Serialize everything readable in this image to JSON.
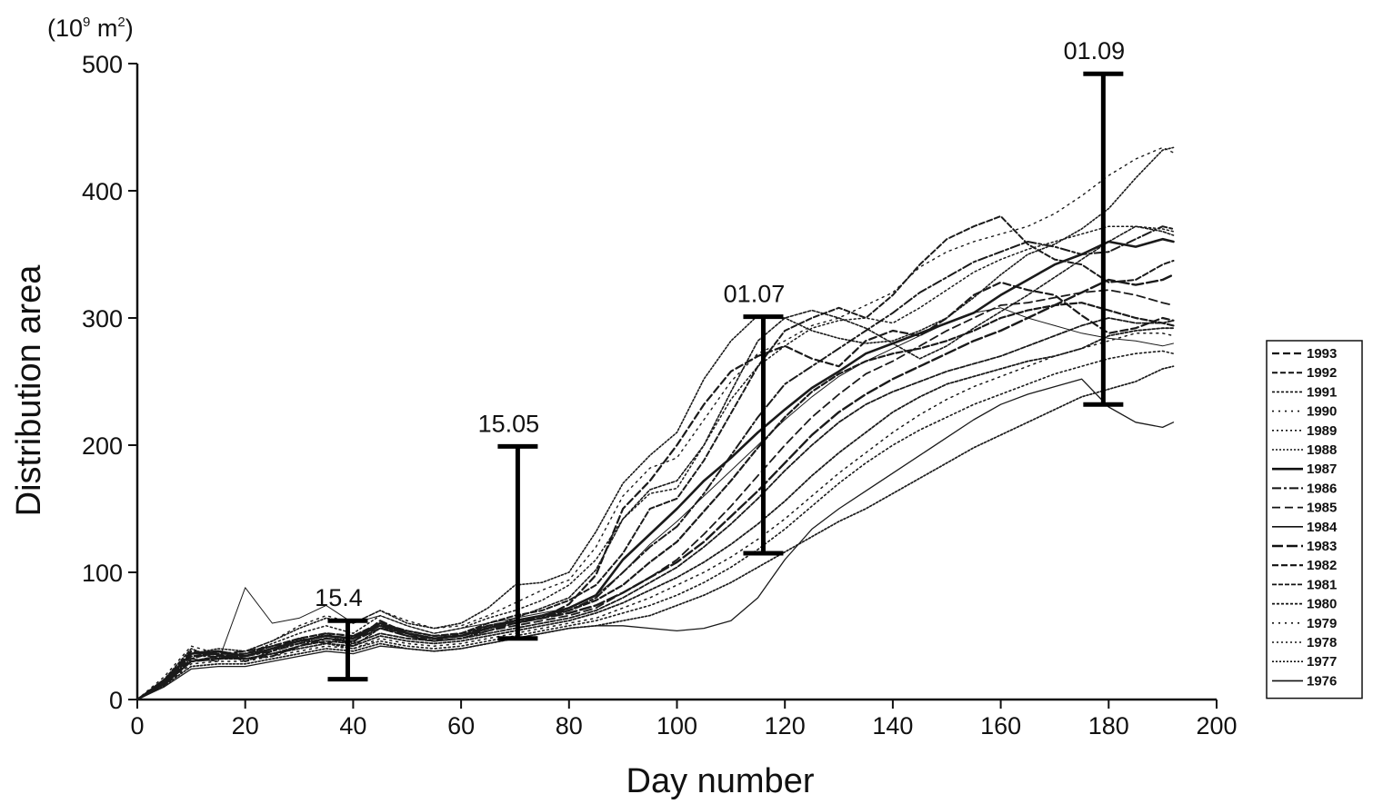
{
  "chart_data": {
    "type": "line",
    "title": "",
    "xlabel": "Day number",
    "ylabel": "Distribution area",
    "y_unit": {
      "base": "(10",
      "exp": "9",
      "mid": " m",
      "exp2": "2",
      "end": ")"
    },
    "xlim": [
      0,
      200
    ],
    "ylim": [
      0,
      500
    ],
    "x_ticks": [
      "0",
      "20",
      "40",
      "60",
      "80",
      "100",
      "120",
      "140",
      "160",
      "180",
      "200"
    ],
    "y_ticks": [
      "0",
      "100",
      "200",
      "300",
      "400",
      "500"
    ],
    "grid": false,
    "legend_position": "right",
    "x_days": [
      0,
      5,
      10,
      15,
      20,
      25,
      30,
      35,
      40,
      45,
      50,
      55,
      60,
      65,
      70,
      75,
      80,
      85,
      90,
      95,
      100,
      105,
      110,
      115,
      120,
      125,
      130,
      135,
      140,
      145,
      150,
      155,
      160,
      165,
      170,
      175,
      180,
      185,
      190,
      192
    ],
    "series": [
      {
        "name": "1993",
        "dash": "8,4",
        "width": 2.2,
        "values": [
          0,
          15,
          38,
          35,
          32,
          34,
          42,
          48,
          45,
          62,
          52,
          48,
          50,
          58,
          62,
          64,
          75,
          98,
          150,
          172,
          200,
          232,
          258,
          270,
          278,
          268,
          262,
          282,
          290,
          286,
          300,
          318,
          328,
          322,
          318,
          302,
          288,
          292,
          300,
          298
        ]
      },
      {
        "name": "1992",
        "dash": "6,3",
        "width": 2.0,
        "values": [
          0,
          12,
          32,
          38,
          30,
          38,
          48,
          44,
          50,
          58,
          50,
          46,
          52,
          60,
          66,
          70,
          78,
          90,
          115,
          150,
          158,
          188,
          225,
          262,
          290,
          300,
          308,
          300,
          318,
          342,
          362,
          372,
          380,
          358,
          346,
          342,
          328,
          330,
          342,
          345
        ]
      },
      {
        "name": "1991",
        "dash": "3,2",
        "width": 1.6,
        "values": [
          0,
          16,
          40,
          32,
          36,
          40,
          44,
          52,
          42,
          56,
          54,
          50,
          50,
          56,
          64,
          72,
          80,
          102,
          142,
          165,
          172,
          200,
          242,
          282,
          300,
          306,
          300,
          292,
          280,
          268,
          278,
          292,
          305,
          318,
          332,
          346,
          360,
          372,
          368,
          365
        ]
      },
      {
        "name": "1990",
        "dash": "2,5",
        "width": 1.4,
        "values": [
          0,
          18,
          42,
          36,
          38,
          46,
          58,
          66,
          60,
          70,
          62,
          56,
          58,
          66,
          76,
          86,
          94,
          120,
          160,
          182,
          190,
          220,
          250,
          272,
          282,
          294,
          300,
          310,
          320,
          340,
          352,
          360,
          366,
          372,
          382,
          396,
          412,
          425,
          434,
          430
        ]
      },
      {
        "name": "1989",
        "dash": "2,3",
        "width": 1.5,
        "values": [
          0,
          14,
          34,
          34,
          36,
          44,
          52,
          58,
          52,
          66,
          58,
          52,
          56,
          64,
          70,
          78,
          90,
          110,
          142,
          162,
          166,
          200,
          236,
          262,
          278,
          292,
          298,
          300,
          296,
          308,
          322,
          336,
          346,
          354,
          360,
          366,
          372,
          372,
          370,
          368
        ]
      },
      {
        "name": "1988",
        "dash": "2,2",
        "width": 1.6,
        "values": [
          0,
          16,
          36,
          40,
          38,
          46,
          56,
          64,
          60,
          70,
          60,
          56,
          60,
          72,
          90,
          92,
          100,
          132,
          170,
          192,
          210,
          252,
          282,
          302,
          300,
          290,
          284,
          280,
          282,
          290,
          300,
          316,
          334,
          350,
          358,
          370,
          386,
          410,
          432,
          434
        ]
      },
      {
        "name": "1987",
        "dash": "",
        "width": 2.6,
        "values": [
          0,
          14,
          36,
          38,
          34,
          40,
          46,
          50,
          48,
          60,
          52,
          48,
          50,
          56,
          62,
          66,
          72,
          82,
          110,
          130,
          150,
          172,
          190,
          210,
          228,
          245,
          258,
          272,
          280,
          288,
          296,
          304,
          318,
          330,
          342,
          350,
          360,
          356,
          362,
          360
        ]
      },
      {
        "name": "1986",
        "dash": "10,3,3,3",
        "width": 2.0,
        "values": [
          0,
          12,
          30,
          34,
          34,
          38,
          44,
          48,
          46,
          56,
          50,
          46,
          48,
          54,
          60,
          64,
          70,
          80,
          100,
          120,
          136,
          162,
          192,
          222,
          248,
          262,
          276,
          290,
          304,
          320,
          332,
          344,
          352,
          360,
          356,
          350,
          352,
          362,
          372,
          370
        ]
      },
      {
        "name": "1985",
        "dash": "9,5",
        "width": 1.8,
        "values": [
          0,
          15,
          36,
          36,
          38,
          42,
          46,
          50,
          48,
          56,
          50,
          48,
          50,
          54,
          58,
          62,
          66,
          72,
          84,
          96,
          110,
          130,
          152,
          176,
          200,
          222,
          240,
          256,
          266,
          278,
          290,
          300,
          310,
          312,
          316,
          320,
          322,
          318,
          312,
          310
        ]
      },
      {
        "name": "1984",
        "dash": "",
        "width": 1.0,
        "values": [
          0,
          14,
          32,
          30,
          88,
          60,
          64,
          74,
          60,
          66,
          58,
          52,
          56,
          60,
          64,
          68,
          72,
          82,
          100,
          122,
          140,
          160,
          180,
          200,
          220,
          238,
          254,
          266,
          276,
          286,
          296,
          304,
          308,
          300,
          294,
          288,
          284,
          282,
          278,
          280
        ]
      },
      {
        "name": "1983",
        "dash": "12,4",
        "width": 2.4,
        "values": [
          0,
          13,
          30,
          32,
          34,
          40,
          46,
          50,
          48,
          58,
          52,
          48,
          50,
          56,
          60,
          64,
          68,
          74,
          84,
          96,
          108,
          124,
          144,
          164,
          186,
          208,
          226,
          240,
          252,
          262,
          272,
          282,
          290,
          300,
          310,
          320,
          330,
          326,
          330,
          334
        ]
      },
      {
        "name": "1982",
        "dash": "7,3",
        "width": 2.2,
        "values": [
          0,
          13,
          34,
          36,
          36,
          42,
          48,
          52,
          50,
          60,
          54,
          50,
          52,
          58,
          62,
          66,
          70,
          78,
          90,
          108,
          124,
          148,
          172,
          198,
          222,
          242,
          256,
          266,
          272,
          276,
          282,
          290,
          300,
          306,
          310,
          312,
          306,
          300,
          296,
          294
        ]
      },
      {
        "name": "1981",
        "dash": "5,2",
        "width": 1.8,
        "values": [
          0,
          12,
          30,
          34,
          32,
          36,
          42,
          46,
          44,
          52,
          48,
          46,
          48,
          52,
          56,
          60,
          64,
          70,
          80,
          92,
          104,
          120,
          138,
          158,
          180,
          200,
          218,
          232,
          242,
          250,
          258,
          264,
          270,
          278,
          286,
          294,
          300,
          296,
          296,
          298
        ]
      },
      {
        "name": "1980",
        "dash": "3,2",
        "width": 1.8,
        "values": [
          0,
          12,
          30,
          32,
          32,
          36,
          40,
          44,
          42,
          50,
          46,
          44,
          46,
          50,
          54,
          58,
          62,
          68,
          76,
          86,
          96,
          108,
          122,
          138,
          156,
          176,
          194,
          210,
          226,
          238,
          248,
          254,
          260,
          266,
          270,
          276,
          286,
          290,
          292,
          292
        ]
      },
      {
        "name": "1979",
        "dash": "2,5",
        "width": 1.5,
        "values": [
          0,
          11,
          28,
          30,
          30,
          34,
          38,
          42,
          40,
          48,
          44,
          42,
          44,
          48,
          52,
          56,
          60,
          64,
          72,
          80,
          90,
          100,
          112,
          126,
          142,
          160,
          178,
          194,
          210,
          224,
          236,
          246,
          254,
          262,
          270,
          276,
          282,
          288,
          288,
          286
        ]
      },
      {
        "name": "1978",
        "dash": "2,3",
        "width": 1.6,
        "values": [
          0,
          12,
          30,
          32,
          32,
          36,
          40,
          44,
          40,
          46,
          42,
          40,
          42,
          46,
          50,
          54,
          58,
          62,
          68,
          74,
          82,
          92,
          104,
          118,
          134,
          152,
          170,
          186,
          200,
          212,
          222,
          232,
          240,
          248,
          256,
          262,
          268,
          272,
          274,
          272
        ]
      },
      {
        "name": "1977",
        "dash": "2,2",
        "width": 1.7,
        "values": [
          0,
          11,
          26,
          28,
          28,
          32,
          36,
          40,
          38,
          44,
          40,
          38,
          40,
          44,
          48,
          52,
          56,
          58,
          62,
          66,
          74,
          82,
          92,
          104,
          116,
          128,
          140,
          150,
          162,
          174,
          186,
          198,
          208,
          218,
          228,
          238,
          244,
          250,
          260,
          262
        ]
      },
      {
        "name": "1976",
        "dash": "",
        "width": 1.3,
        "values": [
          0,
          10,
          24,
          26,
          26,
          30,
          34,
          38,
          36,
          42,
          40,
          38,
          40,
          44,
          48,
          52,
          56,
          58,
          58,
          56,
          54,
          56,
          62,
          80,
          110,
          134,
          150,
          164,
          178,
          192,
          206,
          220,
          232,
          240,
          246,
          252,
          230,
          218,
          214,
          218
        ]
      }
    ],
    "annotations": [
      {
        "label": "15.4",
        "x": 39,
        "y_low": 16,
        "y_high": 62
      },
      {
        "label": "15.05",
        "x": 70.5,
        "y_low": 48,
        "y_high": 199
      },
      {
        "label": "01.07",
        "x": 116,
        "y_low": 115,
        "y_high": 301
      },
      {
        "label": "01.09",
        "x": 179,
        "y_low": 232,
        "y_high": 492
      }
    ]
  }
}
